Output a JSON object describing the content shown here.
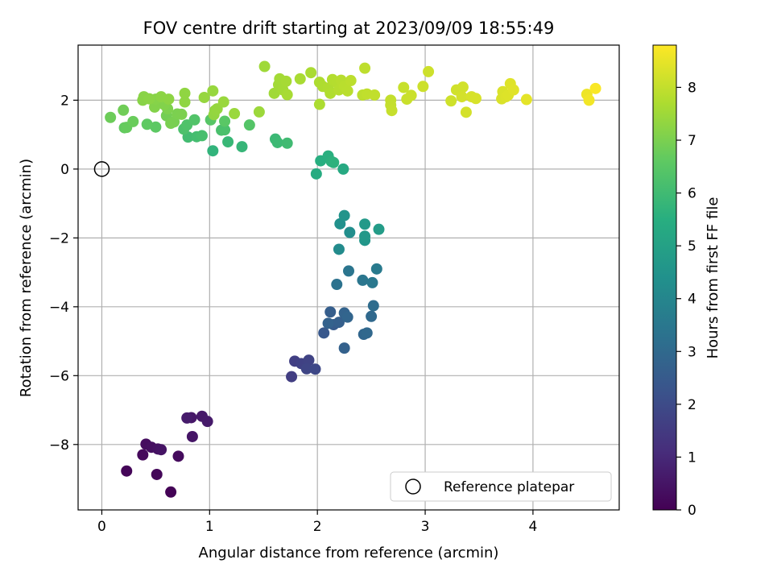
{
  "chart_data": {
    "type": "scatter",
    "title": "FOV centre drift starting at 2023/09/09 18:55:49",
    "xlabel": "Angular distance from reference (arcmin)",
    "ylabel": "Rotation from reference (arcmin)",
    "xlim": [
      -0.22,
      4.8
    ],
    "ylim": [
      -9.9,
      3.6
    ],
    "xticks": [
      0,
      1,
      2,
      3,
      4
    ],
    "yticks": [
      -8,
      -6,
      -4,
      -2,
      0,
      2
    ],
    "xtick_labels": [
      "0",
      "1",
      "2",
      "3",
      "4"
    ],
    "ytick_labels": [
      "−8",
      "−6",
      "−4",
      "−2",
      "0",
      "2"
    ],
    "grid": true,
    "colorbar": {
      "label": "Hours from first FF file",
      "colormap": "viridis",
      "range": [
        0,
        8.8
      ],
      "ticks": [
        0,
        1,
        2,
        3,
        4,
        5,
        6,
        7,
        8
      ],
      "tick_labels": [
        "0",
        "1",
        "2",
        "3",
        "4",
        "5",
        "6",
        "7",
        "8"
      ]
    },
    "reference_point": {
      "name": "Reference platepar",
      "x": 0,
      "y": 0
    },
    "legend": {
      "placement": "lower-right",
      "entries": [
        "Reference platepar"
      ]
    },
    "points": [
      {
        "x": 0.64,
        "y": -9.38,
        "c": 0.05
      },
      {
        "x": 0.23,
        "y": -8.77,
        "c": 0.1
      },
      {
        "x": 0.51,
        "y": -8.87,
        "c": 0.15
      },
      {
        "x": 0.38,
        "y": -8.3,
        "c": 0.2
      },
      {
        "x": 0.71,
        "y": -8.34,
        "c": 0.25
      },
      {
        "x": 0.41,
        "y": -7.99,
        "c": 0.3
      },
      {
        "x": 0.46,
        "y": -8.08,
        "c": 0.35
      },
      {
        "x": 0.52,
        "y": -8.13,
        "c": 0.4
      },
      {
        "x": 0.55,
        "y": -8.15,
        "c": 0.45
      },
      {
        "x": 0.84,
        "y": -7.77,
        "c": 0.5
      },
      {
        "x": 0.83,
        "y": -7.22,
        "c": 0.55
      },
      {
        "x": 0.93,
        "y": -7.18,
        "c": 0.6
      },
      {
        "x": 0.98,
        "y": -7.33,
        "c": 0.62
      },
      {
        "x": 0.79,
        "y": -7.23,
        "c": 0.65
      },
      {
        "x": 1.76,
        "y": -6.03,
        "c": 1.6
      },
      {
        "x": 1.79,
        "y": -5.58,
        "c": 1.65
      },
      {
        "x": 1.85,
        "y": -5.65,
        "c": 1.7
      },
      {
        "x": 1.92,
        "y": -5.55,
        "c": 1.75
      },
      {
        "x": 1.9,
        "y": -5.8,
        "c": 1.8
      },
      {
        "x": 1.98,
        "y": -5.81,
        "c": 1.9
      },
      {
        "x": 2.06,
        "y": -4.76,
        "c": 2.4
      },
      {
        "x": 2.15,
        "y": -4.52,
        "c": 2.5
      },
      {
        "x": 2.12,
        "y": -4.15,
        "c": 2.6
      },
      {
        "x": 2.2,
        "y": -4.45,
        "c": 2.65
      },
      {
        "x": 2.25,
        "y": -5.2,
        "c": 2.7
      },
      {
        "x": 2.1,
        "y": -4.48,
        "c": 2.75
      },
      {
        "x": 2.25,
        "y": -4.18,
        "c": 2.8
      },
      {
        "x": 2.28,
        "y": -4.3,
        "c": 2.85
      },
      {
        "x": 2.43,
        "y": -4.8,
        "c": 2.9
      },
      {
        "x": 2.46,
        "y": -4.76,
        "c": 2.95
      },
      {
        "x": 2.5,
        "y": -4.28,
        "c": 3.0
      },
      {
        "x": 2.52,
        "y": -3.97,
        "c": 3.1
      },
      {
        "x": 2.18,
        "y": -3.35,
        "c": 3.3
      },
      {
        "x": 2.29,
        "y": -2.96,
        "c": 3.4
      },
      {
        "x": 2.42,
        "y": -3.23,
        "c": 3.45
      },
      {
        "x": 2.51,
        "y": -3.3,
        "c": 3.5
      },
      {
        "x": 2.55,
        "y": -2.9,
        "c": 3.6
      },
      {
        "x": 2.2,
        "y": -2.33,
        "c": 4.2
      },
      {
        "x": 2.3,
        "y": -1.84,
        "c": 4.3
      },
      {
        "x": 2.21,
        "y": -1.59,
        "c": 4.4
      },
      {
        "x": 2.25,
        "y": -1.35,
        "c": 4.5
      },
      {
        "x": 2.44,
        "y": -2.07,
        "c": 4.6
      },
      {
        "x": 2.44,
        "y": -1.95,
        "c": 4.65
      },
      {
        "x": 2.44,
        "y": -1.6,
        "c": 4.7
      },
      {
        "x": 2.57,
        "y": -1.75,
        "c": 4.8
      },
      {
        "x": 2.24,
        "y": 0.0,
        "c": 5.3
      },
      {
        "x": 1.99,
        "y": -0.14,
        "c": 5.4
      },
      {
        "x": 2.03,
        "y": 0.24,
        "c": 5.5
      },
      {
        "x": 2.1,
        "y": 0.38,
        "c": 5.55
      },
      {
        "x": 2.13,
        "y": 0.22,
        "c": 5.6
      },
      {
        "x": 2.15,
        "y": 0.19,
        "c": 5.62
      },
      {
        "x": 1.03,
        "y": 0.53,
        "c": 5.7
      },
      {
        "x": 1.3,
        "y": 0.65,
        "c": 5.8
      },
      {
        "x": 1.17,
        "y": 0.79,
        "c": 5.85
      },
      {
        "x": 1.61,
        "y": 0.87,
        "c": 5.9
      },
      {
        "x": 1.63,
        "y": 0.77,
        "c": 5.95
      },
      {
        "x": 1.72,
        "y": 0.75,
        "c": 6.0
      },
      {
        "x": 0.8,
        "y": 0.93,
        "c": 6.05
      },
      {
        "x": 0.88,
        "y": 0.94,
        "c": 6.1
      },
      {
        "x": 0.93,
        "y": 0.97,
        "c": 6.15
      },
      {
        "x": 1.11,
        "y": 1.13,
        "c": 6.2
      },
      {
        "x": 1.14,
        "y": 1.14,
        "c": 6.22
      },
      {
        "x": 0.76,
        "y": 1.16,
        "c": 6.25
      },
      {
        "x": 0.79,
        "y": 1.28,
        "c": 6.3
      },
      {
        "x": 0.86,
        "y": 1.43,
        "c": 6.35
      },
      {
        "x": 1.37,
        "y": 1.28,
        "c": 6.4
      },
      {
        "x": 1.01,
        "y": 1.43,
        "c": 6.45
      },
      {
        "x": 1.14,
        "y": 1.39,
        "c": 6.5
      },
      {
        "x": 0.5,
        "y": 1.22,
        "c": 6.55
      },
      {
        "x": 0.42,
        "y": 1.3,
        "c": 6.6
      },
      {
        "x": 0.21,
        "y": 1.2,
        "c": 6.65
      },
      {
        "x": 0.23,
        "y": 1.21,
        "c": 6.7
      },
      {
        "x": 0.29,
        "y": 1.38,
        "c": 6.75
      },
      {
        "x": 0.08,
        "y": 1.5,
        "c": 6.8
      },
      {
        "x": 0.2,
        "y": 1.71,
        "c": 6.85
      },
      {
        "x": 0.6,
        "y": 1.55,
        "c": 6.9
      },
      {
        "x": 0.67,
        "y": 1.37,
        "c": 6.95
      },
      {
        "x": 0.64,
        "y": 1.33,
        "c": 6.97
      },
      {
        "x": 0.7,
        "y": 1.6,
        "c": 7.0
      },
      {
        "x": 0.74,
        "y": 1.59,
        "c": 7.02
      },
      {
        "x": 0.61,
        "y": 1.75,
        "c": 7.05
      },
      {
        "x": 0.58,
        "y": 1.87,
        "c": 7.1
      },
      {
        "x": 0.49,
        "y": 1.8,
        "c": 7.12
      },
      {
        "x": 0.5,
        "y": 2.03,
        "c": 7.15
      },
      {
        "x": 0.38,
        "y": 2.0,
        "c": 7.18
      },
      {
        "x": 0.39,
        "y": 2.1,
        "c": 7.2
      },
      {
        "x": 0.44,
        "y": 2.04,
        "c": 7.22
      },
      {
        "x": 0.55,
        "y": 2.1,
        "c": 7.24
      },
      {
        "x": 0.62,
        "y": 2.03,
        "c": 7.26
      },
      {
        "x": 0.77,
        "y": 1.95,
        "c": 7.28
      },
      {
        "x": 0.77,
        "y": 2.2,
        "c": 7.3
      },
      {
        "x": 1.04,
        "y": 1.58,
        "c": 7.32
      },
      {
        "x": 1.05,
        "y": 1.7,
        "c": 7.34
      },
      {
        "x": 1.07,
        "y": 1.75,
        "c": 7.36
      },
      {
        "x": 0.95,
        "y": 2.08,
        "c": 7.38
      },
      {
        "x": 1.03,
        "y": 2.27,
        "c": 7.4
      },
      {
        "x": 1.13,
        "y": 1.95,
        "c": 7.42
      },
      {
        "x": 1.23,
        "y": 1.61,
        "c": 7.44
      },
      {
        "x": 1.46,
        "y": 1.66,
        "c": 7.46
      },
      {
        "x": 1.51,
        "y": 2.98,
        "c": 7.5
      },
      {
        "x": 1.6,
        "y": 2.2,
        "c": 7.52
      },
      {
        "x": 1.64,
        "y": 2.45,
        "c": 7.54
      },
      {
        "x": 1.65,
        "y": 2.62,
        "c": 7.56
      },
      {
        "x": 1.68,
        "y": 2.3,
        "c": 7.58
      },
      {
        "x": 1.71,
        "y": 2.55,
        "c": 7.6
      },
      {
        "x": 1.72,
        "y": 2.16,
        "c": 7.62
      },
      {
        "x": 1.84,
        "y": 2.62,
        "c": 7.64
      },
      {
        "x": 1.94,
        "y": 2.8,
        "c": 7.66
      },
      {
        "x": 2.02,
        "y": 1.88,
        "c": 7.68
      },
      {
        "x": 2.02,
        "y": 2.52,
        "c": 7.7
      },
      {
        "x": 2.05,
        "y": 2.4,
        "c": 7.72
      },
      {
        "x": 2.1,
        "y": 2.35,
        "c": 7.74
      },
      {
        "x": 2.12,
        "y": 2.2,
        "c": 7.76
      },
      {
        "x": 2.14,
        "y": 2.6,
        "c": 7.78
      },
      {
        "x": 2.18,
        "y": 2.52,
        "c": 7.8
      },
      {
        "x": 2.2,
        "y": 2.3,
        "c": 7.82
      },
      {
        "x": 2.22,
        "y": 2.58,
        "c": 7.84
      },
      {
        "x": 2.25,
        "y": 2.4,
        "c": 7.86
      },
      {
        "x": 2.28,
        "y": 2.27,
        "c": 7.88
      },
      {
        "x": 2.31,
        "y": 2.57,
        "c": 7.9
      },
      {
        "x": 2.42,
        "y": 2.15,
        "c": 7.92
      },
      {
        "x": 2.44,
        "y": 2.93,
        "c": 7.94
      },
      {
        "x": 2.46,
        "y": 2.18,
        "c": 7.96
      },
      {
        "x": 2.53,
        "y": 2.15,
        "c": 7.98
      },
      {
        "x": 2.68,
        "y": 2.0,
        "c": 8.0
      },
      {
        "x": 2.68,
        "y": 1.86,
        "c": 8.02
      },
      {
        "x": 2.69,
        "y": 1.7,
        "c": 8.04
      },
      {
        "x": 2.8,
        "y": 2.37,
        "c": 8.06
      },
      {
        "x": 2.83,
        "y": 2.03,
        "c": 8.08
      },
      {
        "x": 2.87,
        "y": 2.14,
        "c": 8.1
      },
      {
        "x": 2.98,
        "y": 2.4,
        "c": 8.12
      },
      {
        "x": 3.03,
        "y": 2.83,
        "c": 8.14
      },
      {
        "x": 3.24,
        "y": 1.98,
        "c": 8.16
      },
      {
        "x": 3.29,
        "y": 2.3,
        "c": 8.18
      },
      {
        "x": 3.35,
        "y": 2.38,
        "c": 8.2
      },
      {
        "x": 3.34,
        "y": 2.1,
        "c": 8.22
      },
      {
        "x": 3.38,
        "y": 1.65,
        "c": 8.24
      },
      {
        "x": 3.43,
        "y": 2.1,
        "c": 8.26
      },
      {
        "x": 3.47,
        "y": 2.05,
        "c": 8.28
      },
      {
        "x": 3.71,
        "y": 2.04,
        "c": 8.3
      },
      {
        "x": 3.72,
        "y": 2.25,
        "c": 8.32
      },
      {
        "x": 3.75,
        "y": 2.1,
        "c": 8.34
      },
      {
        "x": 3.77,
        "y": 2.15,
        "c": 8.36
      },
      {
        "x": 3.79,
        "y": 2.48,
        "c": 8.38
      },
      {
        "x": 3.82,
        "y": 2.3,
        "c": 8.4
      },
      {
        "x": 3.94,
        "y": 2.02,
        "c": 8.45
      },
      {
        "x": 4.5,
        "y": 2.17,
        "c": 8.6
      },
      {
        "x": 4.52,
        "y": 2.0,
        "c": 8.65
      },
      {
        "x": 4.58,
        "y": 2.34,
        "c": 8.75
      }
    ]
  }
}
